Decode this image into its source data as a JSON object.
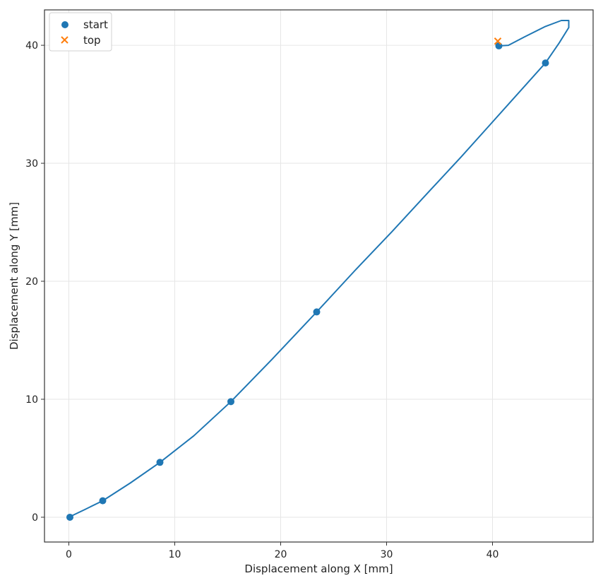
{
  "chart_data": {
    "type": "line",
    "title": "",
    "xlabel": "Displacement along X [mm]",
    "ylabel": "Displacement along Y [mm]",
    "xlim": [
      -2.3,
      49.5
    ],
    "ylim": [
      -2.1,
      43.0
    ],
    "xticks": [
      0,
      10,
      20,
      30,
      40
    ],
    "yticks": [
      0,
      10,
      20,
      30,
      40
    ],
    "grid": true,
    "legend": {
      "position": "top-left",
      "entries": [
        "start",
        "top"
      ]
    },
    "colors": {
      "line": "#1f77b4",
      "start": "#1f77b4",
      "top": "#ff7f0e",
      "grid": "#e6e6e6",
      "axes": "#333333"
    },
    "series": [
      {
        "name": "",
        "type": "line",
        "x": [
          0.0,
          1.5,
          3.2,
          5.8,
          8.6,
          11.8,
          15.3,
          19.2,
          23.4,
          27.0,
          30.5,
          34.0,
          37.0,
          39.5,
          42.0,
          45.0,
          46.3,
          47.2,
          47.2,
          46.5,
          45.0,
          43.0,
          41.5,
          40.6
        ],
        "y": [
          0.0,
          0.65,
          1.4,
          2.9,
          4.65,
          6.9,
          9.8,
          13.4,
          17.4,
          20.9,
          24.2,
          27.6,
          30.5,
          33.0,
          35.5,
          38.5,
          40.2,
          41.5,
          42.1,
          42.1,
          41.6,
          40.7,
          40.0,
          39.95
        ]
      },
      {
        "name": "start",
        "type": "scatter",
        "x": [
          0.1,
          3.2,
          8.6,
          15.3,
          23.4,
          45.0,
          40.6
        ],
        "y": [
          0.0,
          1.4,
          4.65,
          9.8,
          17.4,
          38.5,
          39.95
        ]
      },
      {
        "name": "top",
        "type": "scatter",
        "x": [
          40.5
        ],
        "y": [
          40.35
        ]
      }
    ]
  }
}
